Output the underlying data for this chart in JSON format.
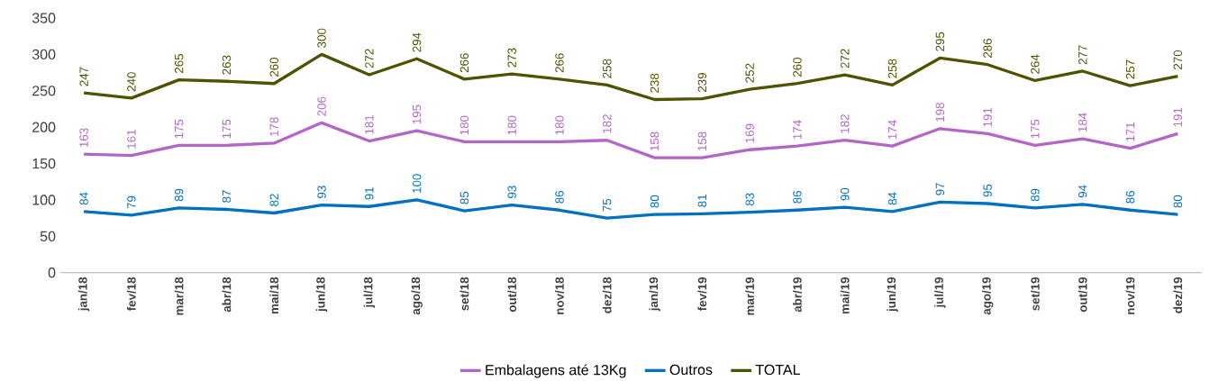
{
  "chart_data": {
    "type": "line",
    "categories": [
      "jan/18",
      "fev/18",
      "mar/18",
      "abr/18",
      "mai/18",
      "jun/18",
      "jul/18",
      "ago/18",
      "set/18",
      "out/18",
      "nov/18",
      "dez/18",
      "jan/19",
      "fev/19",
      "mar/19",
      "abr/19",
      "mai/19",
      "jun/19",
      "jul/19",
      "ago/19",
      "set/19",
      "out/19",
      "nov/19",
      "dez/19"
    ],
    "series": [
      {
        "name": "Embalagens até 13Kg",
        "color": "#b267c6",
        "values": [
          163,
          161,
          175,
          175,
          178,
          206,
          181,
          195,
          180,
          180,
          180,
          182,
          158,
          158,
          169,
          174,
          182,
          174,
          198,
          191,
          175,
          184,
          171,
          191
        ]
      },
      {
        "name": "Outros",
        "color": "#0070c0",
        "values": [
          84,
          79,
          89,
          87,
          82,
          93,
          91,
          100,
          85,
          93,
          86,
          75,
          80,
          81,
          83,
          86,
          90,
          84,
          97,
          95,
          89,
          94,
          86,
          80
        ]
      },
      {
        "name": "TOTAL",
        "color": "#4f5200",
        "values": [
          247,
          240,
          265,
          263,
          260,
          300,
          272,
          294,
          266,
          273,
          266,
          258,
          238,
          239,
          252,
          260,
          272,
          258,
          295,
          286,
          264,
          277,
          257,
          270
        ]
      }
    ],
    "ylim": [
      0,
      350
    ],
    "yticks": [
      0,
      50,
      100,
      150,
      200,
      250,
      300,
      350
    ],
    "legend": "bottom",
    "data_labels": true,
    "marker": "none",
    "line_style": "solid"
  }
}
